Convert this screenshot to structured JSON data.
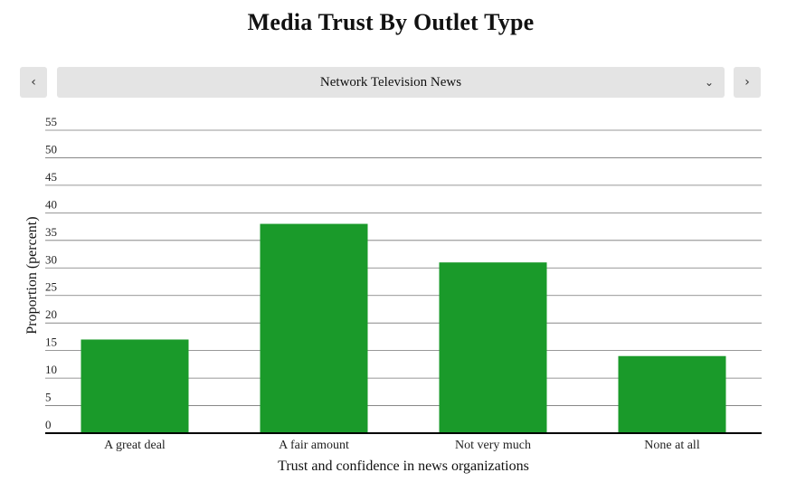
{
  "page_title": "Media Trust By Outlet Type",
  "nav": {
    "prev_icon": "chevron-left-icon",
    "next_icon": "chevron-right-icon",
    "prev_glyph": "‹",
    "next_glyph": "›"
  },
  "selector": {
    "value": "Network Television News",
    "icon": "chevron-down-icon",
    "glyph": "⌄"
  },
  "chart_data": {
    "type": "bar",
    "categories": [
      "A great deal",
      "A fair amount",
      "Not very much",
      "None at all"
    ],
    "values": [
      17,
      38,
      31,
      14
    ],
    "xlabel": "Trust and confidence in news organizations",
    "ylabel": "Proportion (percent)",
    "ylim": [
      0,
      55
    ],
    "yticks": [
      0,
      5,
      10,
      15,
      20,
      25,
      30,
      35,
      40,
      45,
      50,
      55
    ],
    "grid": true,
    "bar_color": "#1a9a2a"
  }
}
